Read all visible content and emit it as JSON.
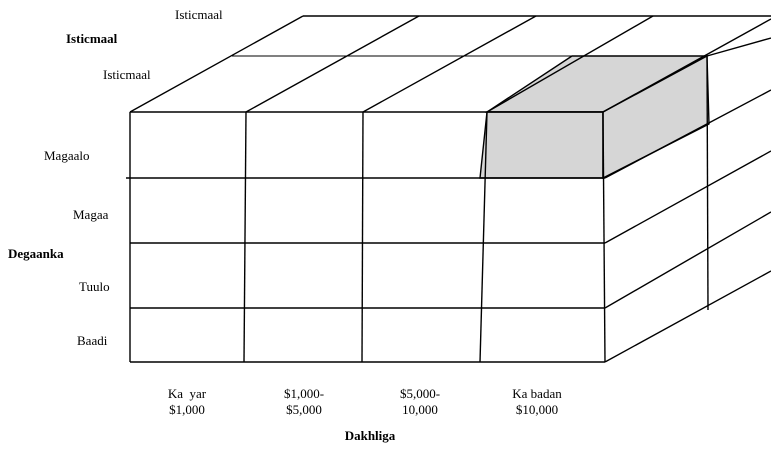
{
  "top_labels": {
    "back_row": "Isticmaal",
    "axis_title": "Isticmaal",
    "front_row": "Isticmaal"
  },
  "row_axis": {
    "title": "Degaanka",
    "rows": [
      "Magaalo",
      "Magaa",
      "Tuulo",
      "Baadi"
    ]
  },
  "column_axis": {
    "title": "Dakhliga",
    "columns": [
      [
        "Ka  yar",
        "$1,000"
      ],
      [
        "$1,000-",
        "$5,000"
      ],
      [
        "$5,000-",
        "10,000"
      ],
      [
        "Ka badan",
        "$10,000"
      ]
    ]
  },
  "highlight": {
    "row": "Magaalo",
    "column": "Ka badan $10,000",
    "color": "#d6d6d6"
  }
}
